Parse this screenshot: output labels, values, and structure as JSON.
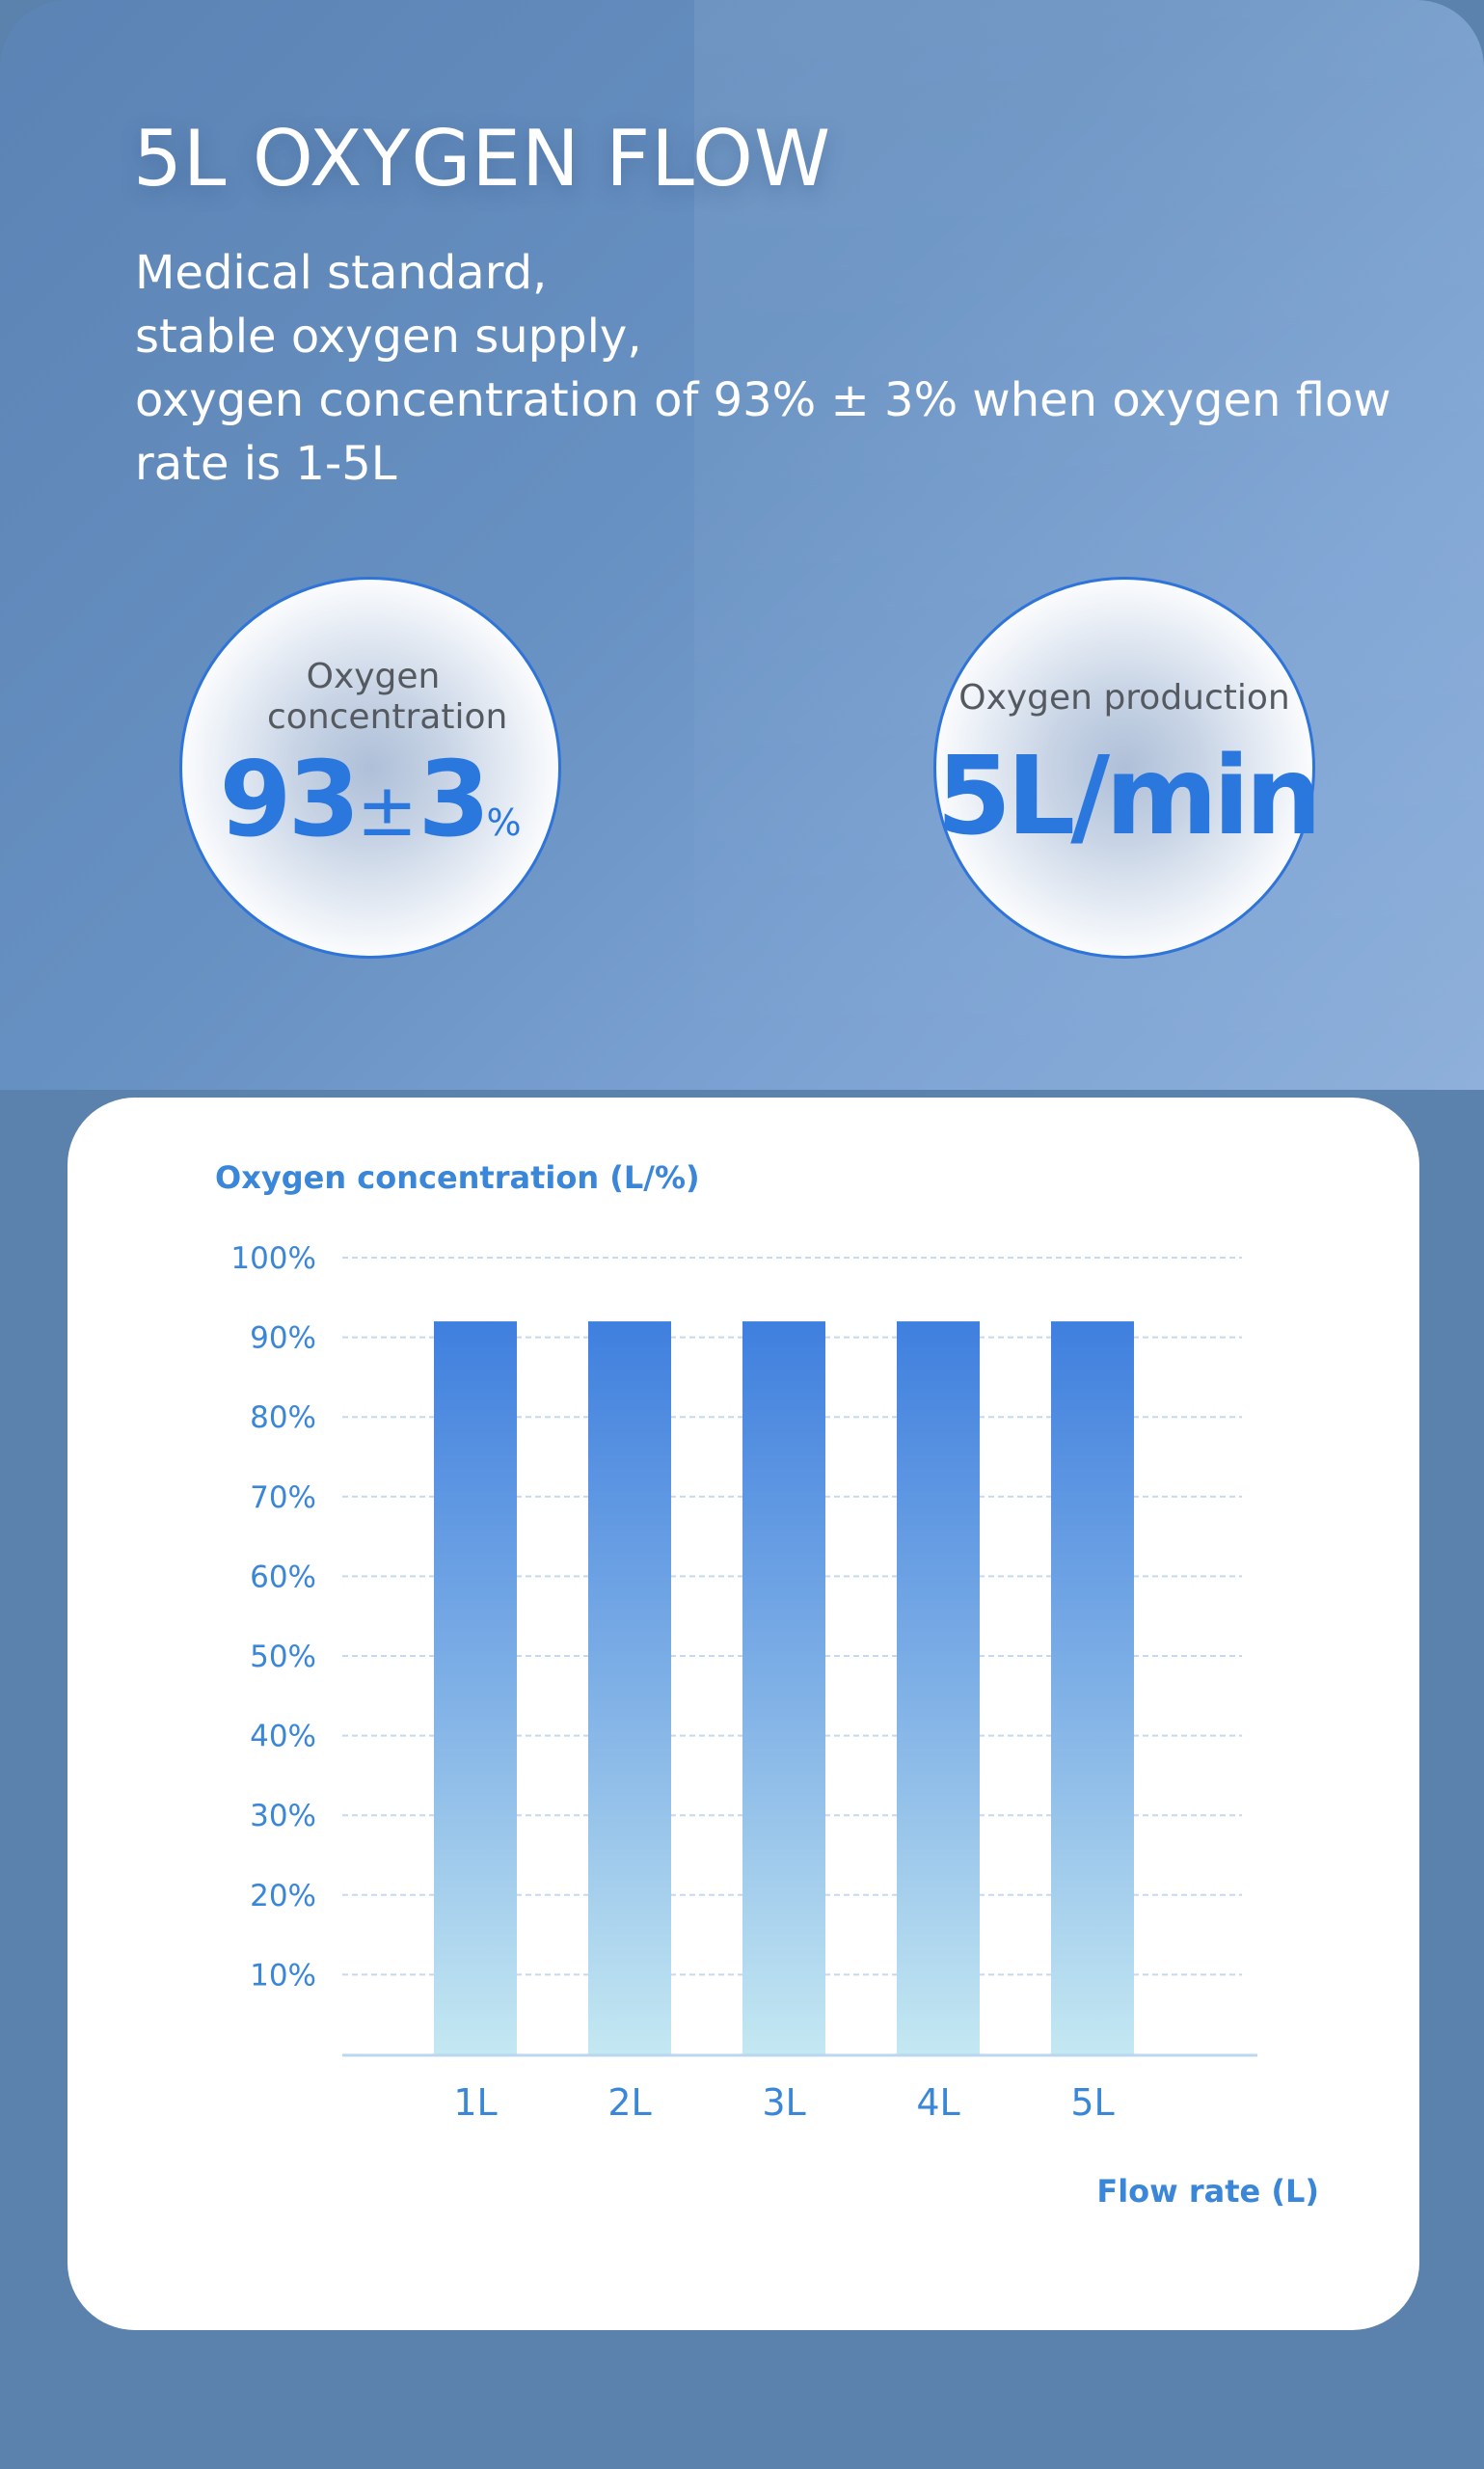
{
  "header": {
    "title": "5L OXYGEN FLOW",
    "description_lines": [
      "Medical standard,",
      "stable oxygen supply,",
      "oxygen concentration of 93% ± 3% when oxygen flow",
      "rate is 1-5L"
    ]
  },
  "badges": {
    "concentration": {
      "label": "Oxygen concentration",
      "value": "93",
      "pm": "±",
      "value2": "3",
      "unit": "%"
    },
    "production": {
      "label": "Oxygen production",
      "value": "5L/min"
    }
  },
  "chart_data": {
    "type": "bar",
    "title": "",
    "ylabel": "Oxygen concentration (L/%)",
    "xlabel": "Flow rate (L)",
    "categories": [
      "1L",
      "2L",
      "3L",
      "4L",
      "5L"
    ],
    "values": [
      92,
      92,
      92,
      92,
      92
    ],
    "ylim": [
      0,
      100
    ],
    "yticks": [
      "10%",
      "20%",
      "30%",
      "40%",
      "50%",
      "60%",
      "70%",
      "80%",
      "90%",
      "100%"
    ],
    "grid": true,
    "colors": {
      "bar_top": "#3f7fde",
      "bar_bottom": "#c4e8f2",
      "axis_text": "#3a86d8"
    }
  }
}
